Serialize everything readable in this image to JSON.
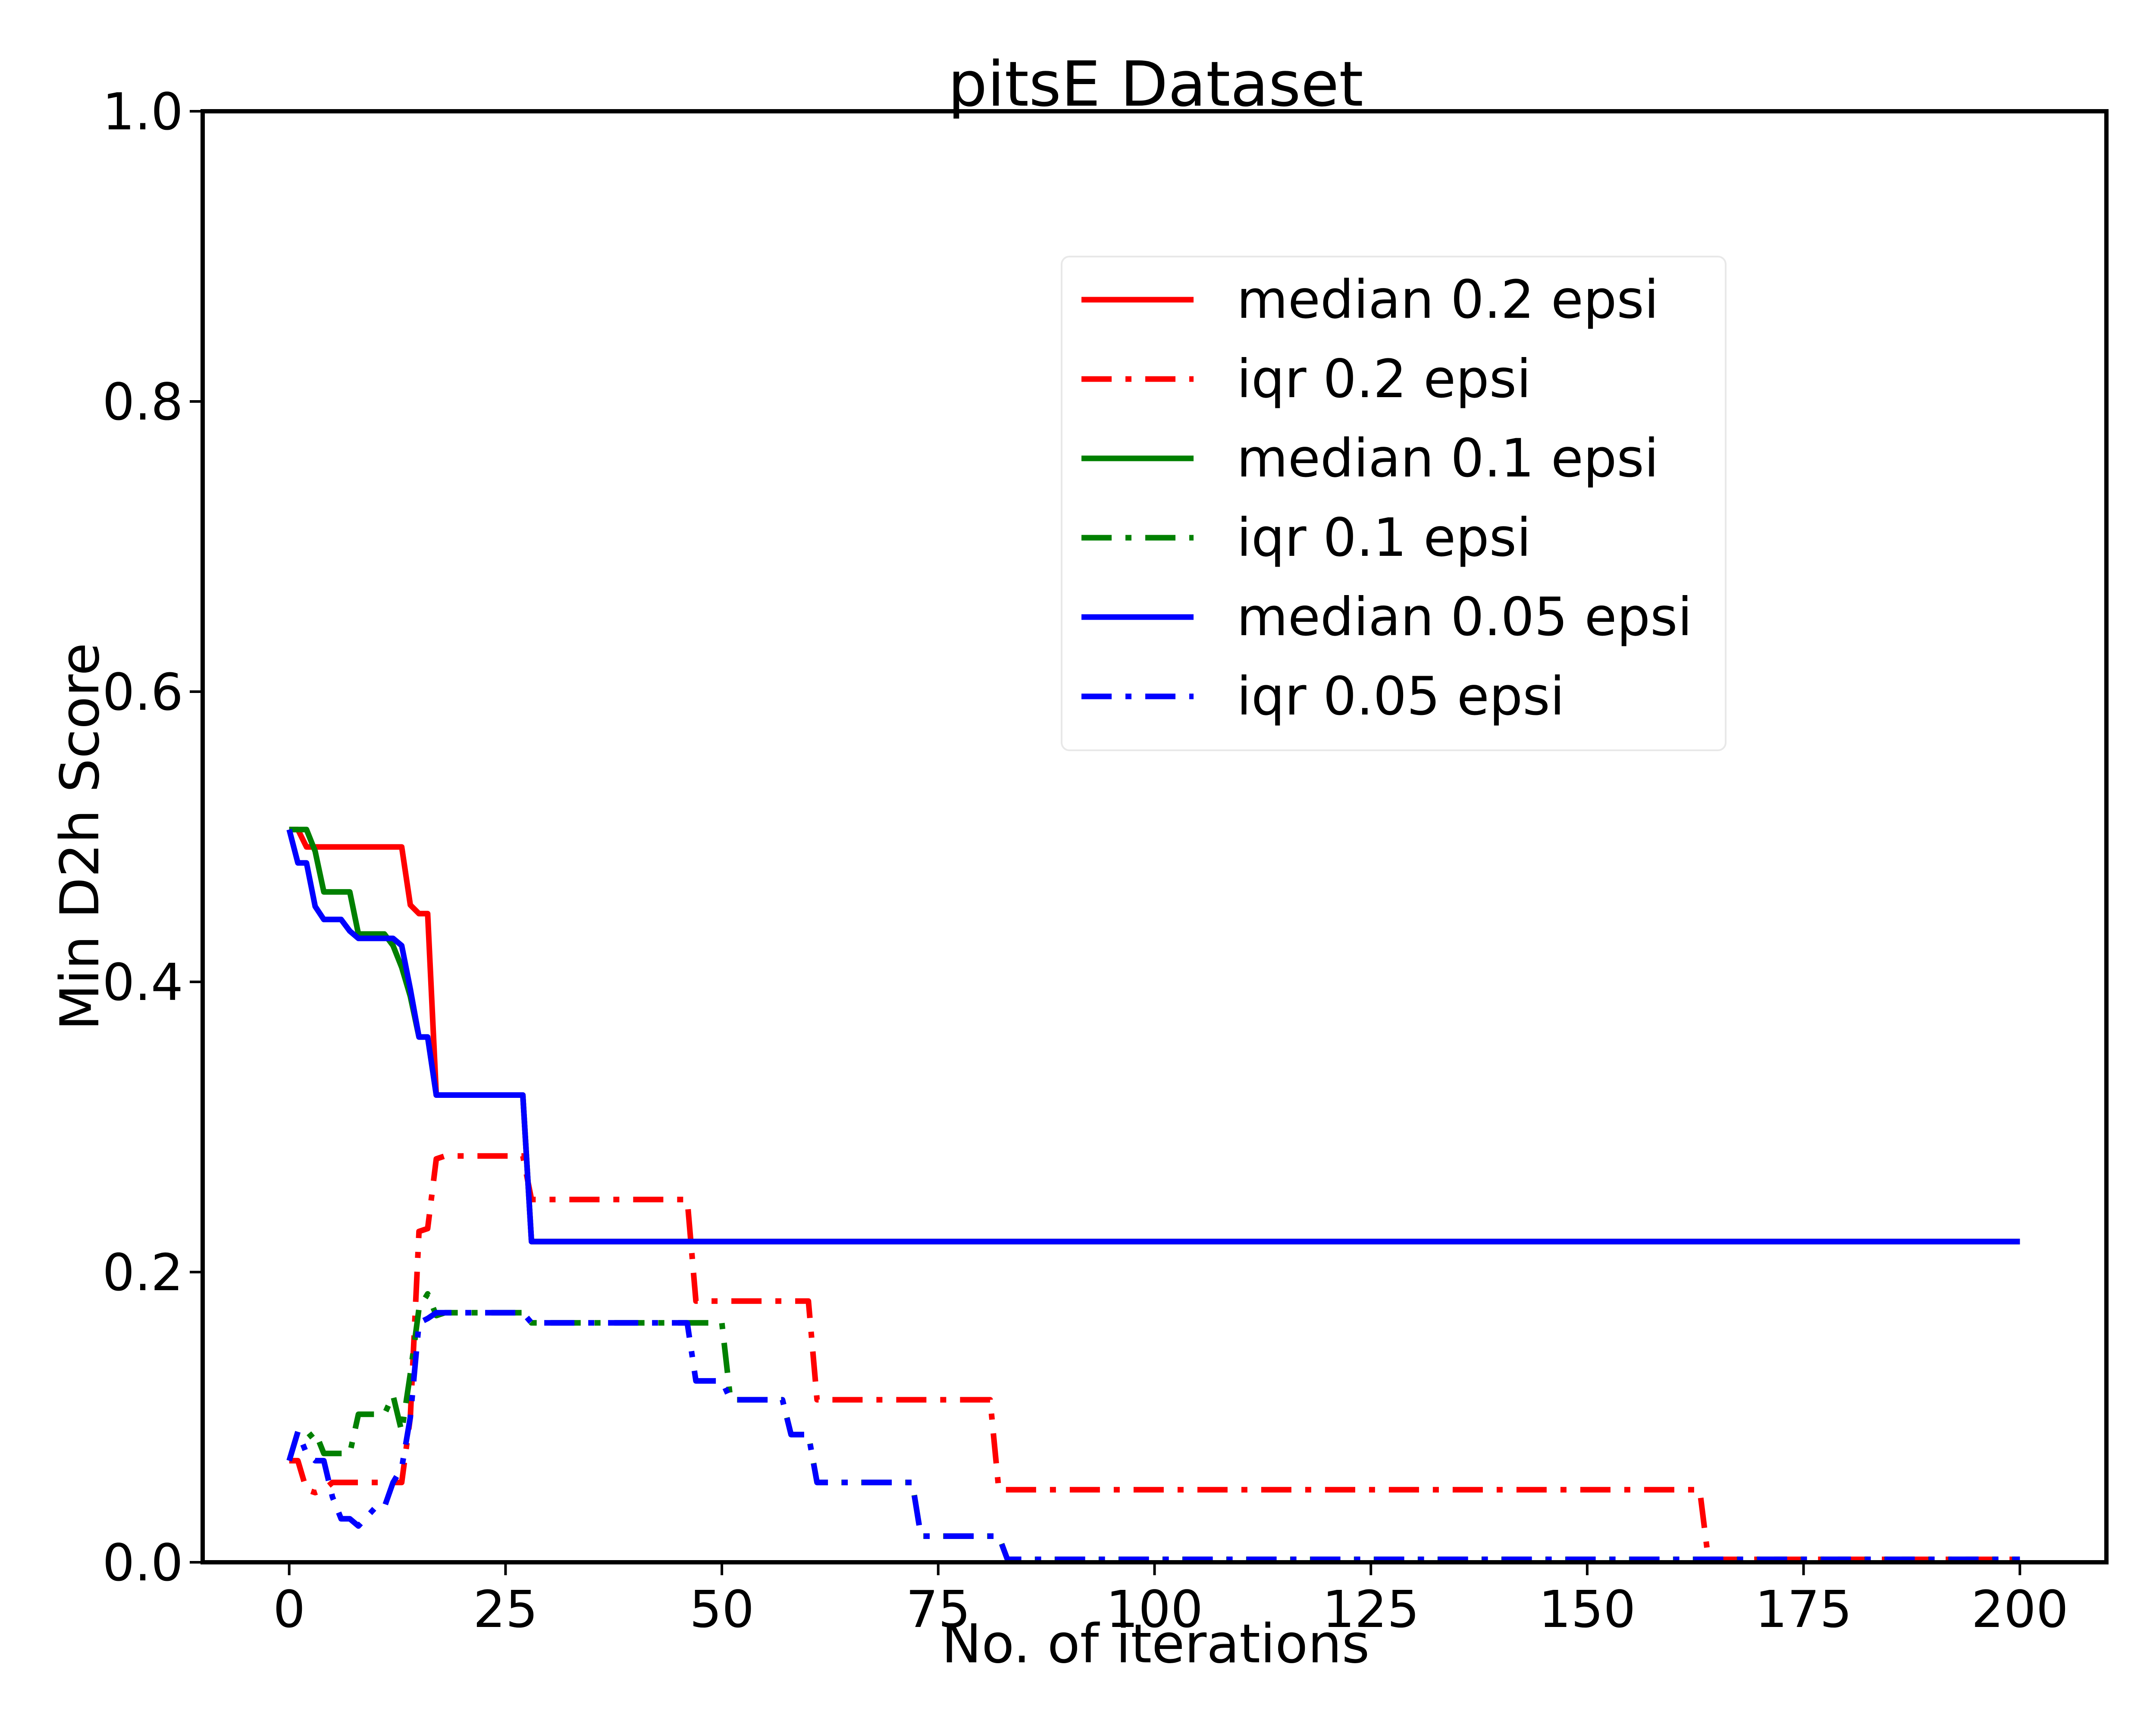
{
  "chart_data": {
    "type": "line",
    "title": "pitsE Dataset",
    "xlabel": "No. of iterations",
    "ylabel": "Min D2h Score",
    "xlim": [
      -10,
      210
    ],
    "ylim": [
      0.0,
      1.0
    ],
    "xticks": [
      0,
      25,
      50,
      75,
      100,
      125,
      150,
      175,
      200
    ],
    "xtick_labels": [
      "0",
      "25",
      "50",
      "75",
      "100",
      "125",
      "150",
      "175",
      "200"
    ],
    "yticks": [
      0.0,
      0.2,
      0.4,
      0.6,
      0.8,
      1.0
    ],
    "ytick_labels": [
      "0.0",
      "0.2",
      "0.4",
      "0.6",
      "0.8",
      "1.0"
    ],
    "grid": false,
    "legend_position": "upper-center-right",
    "series": [
      {
        "name": "median 0.2 epsi",
        "color": "#ff0000",
        "style": "solid",
        "x": [
          0,
          1,
          2,
          13,
          14,
          15,
          16,
          17,
          27,
          28,
          200
        ],
        "y": [
          0.505,
          0.505,
          0.493,
          0.493,
          0.453,
          0.447,
          0.447,
          0.322,
          0.322,
          0.221,
          0.221
        ]
      },
      {
        "name": "iqr 0.2 epsi",
        "color": "#ff0000",
        "style": "dashdot",
        "x": [
          0,
          1,
          2,
          3,
          4,
          5,
          13,
          14,
          15,
          16,
          17,
          18,
          27,
          28,
          46,
          47,
          60,
          61,
          81,
          82,
          163,
          164,
          200
        ],
        "y": [
          0.07,
          0.07,
          0.05,
          0.048,
          0.05,
          0.055,
          0.055,
          0.1,
          0.228,
          0.23,
          0.278,
          0.28,
          0.28,
          0.25,
          0.25,
          0.18,
          0.18,
          0.112,
          0.112,
          0.05,
          0.05,
          0.002,
          0.002
        ]
      },
      {
        "name": "median 0.1 epsi",
        "color": "#008000",
        "style": "solid",
        "x": [
          0,
          1,
          2,
          3,
          4,
          7,
          8,
          11,
          12,
          13,
          14,
          15,
          16,
          17,
          27,
          28,
          200
        ],
        "y": [
          0.505,
          0.505,
          0.505,
          0.49,
          0.462,
          0.462,
          0.433,
          0.433,
          0.425,
          0.41,
          0.39,
          0.362,
          0.362,
          0.322,
          0.322,
          0.221,
          0.221
        ]
      },
      {
        "name": "iqr 0.1 epsi",
        "color": "#008000",
        "style": "dashdot",
        "x": [
          0,
          1,
          2,
          3,
          4,
          7,
          8,
          11,
          12,
          13,
          14,
          15,
          16,
          17,
          18,
          27,
          28,
          50,
          51,
          57,
          58,
          60,
          61,
          72,
          73,
          82,
          83,
          200
        ],
        "y": [
          0.07,
          0.09,
          0.085,
          0.09,
          0.075,
          0.075,
          0.102,
          0.102,
          0.115,
          0.09,
          0.13,
          0.175,
          0.185,
          0.17,
          0.172,
          0.172,
          0.165,
          0.165,
          0.112,
          0.112,
          0.088,
          0.088,
          0.055,
          0.055,
          0.018,
          0.018,
          0.002,
          0.002
        ]
      },
      {
        "name": "median 0.05 epsi",
        "color": "#0000ff",
        "style": "solid",
        "x": [
          0,
          1,
          2,
          3,
          4,
          6,
          7,
          8,
          12,
          13,
          14,
          15,
          16,
          17,
          27,
          28,
          200
        ],
        "y": [
          0.505,
          0.482,
          0.482,
          0.452,
          0.443,
          0.443,
          0.435,
          0.43,
          0.43,
          0.425,
          0.395,
          0.362,
          0.362,
          0.322,
          0.322,
          0.221,
          0.221
        ]
      },
      {
        "name": "iqr 0.05 epsi",
        "color": "#0000ff",
        "style": "dashdot",
        "x": [
          0,
          1,
          2,
          3,
          4,
          5,
          6,
          7,
          8,
          10,
          11,
          12,
          13,
          14,
          15,
          16,
          17,
          18,
          27,
          28,
          46,
          47,
          50,
          51,
          57,
          58,
          60,
          61,
          72,
          73,
          82,
          83,
          200
        ],
        "y": [
          0.07,
          0.09,
          0.075,
          0.07,
          0.07,
          0.045,
          0.03,
          0.03,
          0.025,
          0.038,
          0.038,
          0.055,
          0.065,
          0.1,
          0.165,
          0.168,
          0.172,
          0.172,
          0.172,
          0.165,
          0.165,
          0.125,
          0.125,
          0.112,
          0.112,
          0.088,
          0.088,
          0.055,
          0.055,
          0.018,
          0.018,
          0.002,
          0.002
        ]
      }
    ]
  }
}
